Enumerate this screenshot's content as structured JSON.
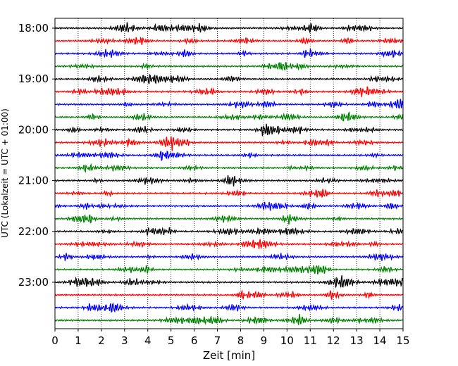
{
  "chart_data": {
    "type": "line",
    "title": "",
    "xlabel": "Zeit  [min]",
    "ylabel": "UTC (Lokalzeit = UTC + 01:00)",
    "xlim": [
      0,
      15
    ],
    "x_ticks": [
      "0",
      "1",
      "2",
      "3",
      "4",
      "5",
      "6",
      "7",
      "8",
      "9",
      "10",
      "11",
      "12",
      "13",
      "14",
      "15"
    ],
    "y_hour_labels": [
      "18:00",
      "19:00",
      "20:00",
      "21:00",
      "22:00",
      "23:00"
    ],
    "grid": "vertical dotted lines at each minute",
    "trace_colors": [
      "#000000",
      "#ff0000",
      "#0000ff",
      "#008000"
    ],
    "traces_per_hour": 4,
    "trace_count": 24,
    "trace_interval_min": 15
  }
}
